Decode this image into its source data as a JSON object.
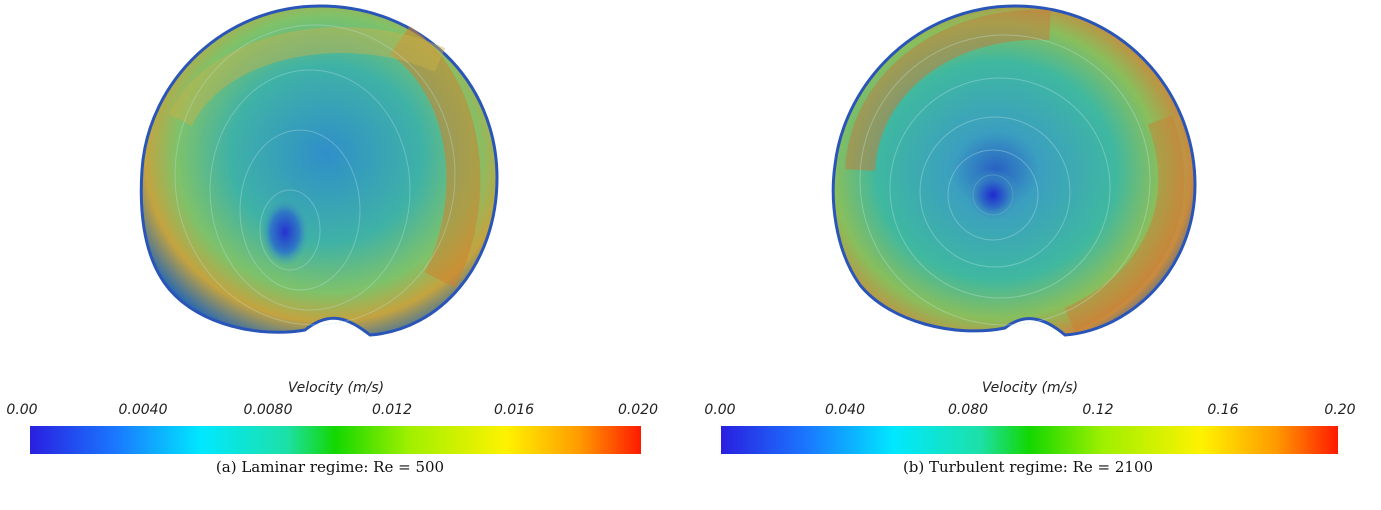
{
  "panels": [
    {
      "colorbar_title": "Velocity (m/s)",
      "ticks": [
        "0.00",
        "0.0040",
        "0.0080",
        "0.012",
        "0.016",
        "0.020"
      ],
      "caption": "(a) Laminar regime: Re = 500"
    },
    {
      "colorbar_title": "Velocity (m/s)",
      "ticks": [
        "0.00",
        "0.040",
        "0.080",
        "0.12",
        "0.16",
        "0.20"
      ],
      "caption": "(b) Turbulent regime: Re = 2100"
    }
  ],
  "colormap": [
    "#2a1fe0",
    "#1a78ff",
    "#00e8ff",
    "#1de0a8",
    "#13d700",
    "#9ff000",
    "#fff200",
    "#ff9a00",
    "#ff1a00"
  ]
}
